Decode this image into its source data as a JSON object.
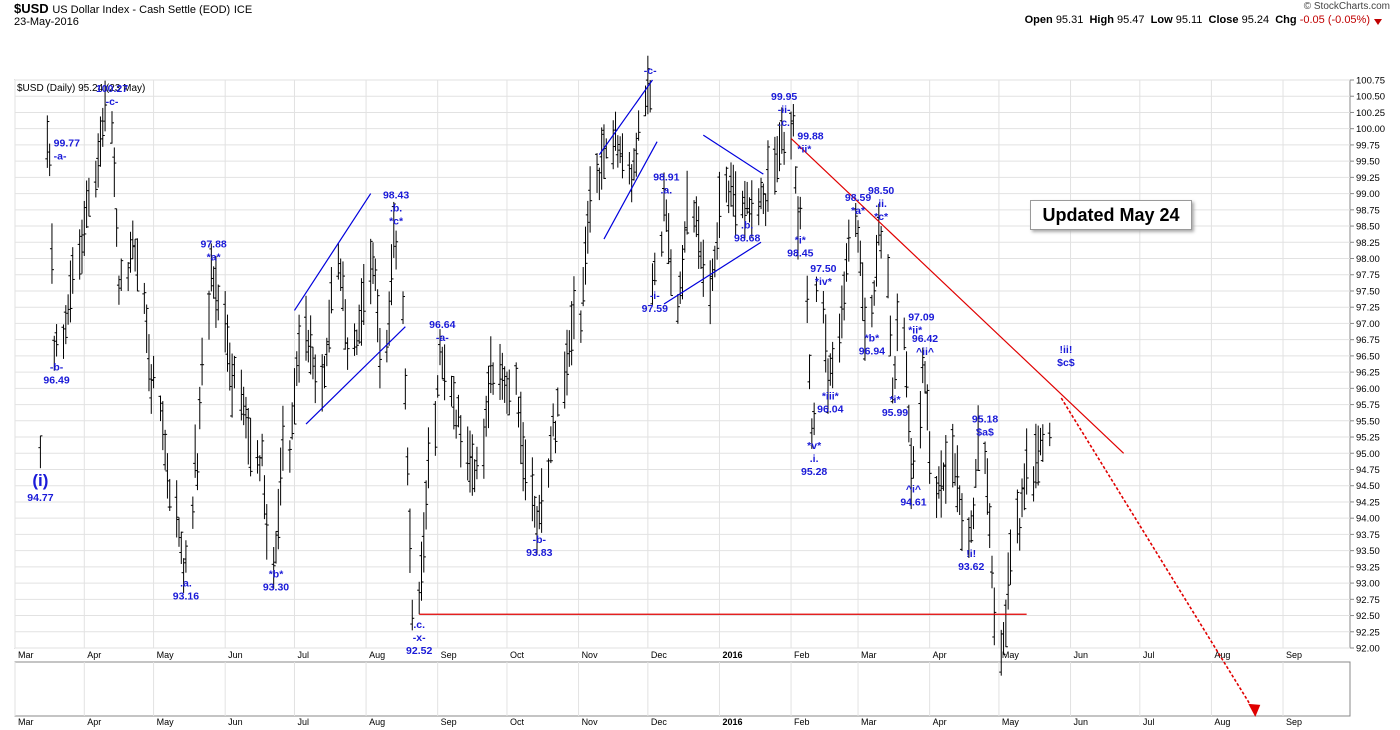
{
  "header": {
    "symbol": "$USD",
    "name": "US Dollar Index - Cash Settle (EOD)",
    "exchange": "ICE",
    "date": "23-May-2016",
    "brand": "© StockCharts.com",
    "ohlc": {
      "open_label": "Open",
      "open": "95.31",
      "high_label": "High",
      "high": "95.47",
      "low_label": "Low",
      "low": "95.11",
      "close_label": "Close",
      "close": "95.24",
      "chg_label": "Chg",
      "chg": "-0.05 (-0.05%)"
    }
  },
  "legend": "$USD (Daily) 95.24 (23 May)",
  "updated_box": "Updated May 24",
  "chart_data": {
    "type": "ohlc",
    "y_axis": {
      "min": 92.0,
      "max": 100.75,
      "step": 0.25,
      "side": "right",
      "ticks": [
        "100.75",
        "100.50",
        "100.25",
        "100.00",
        "99.75",
        "99.50",
        "99.25",
        "99.00",
        "98.75",
        "98.50",
        "98.25",
        "98.00",
        "97.75",
        "97.50",
        "97.25",
        "97.00",
        "96.75",
        "96.50",
        "96.25",
        "96.00",
        "95.75",
        "95.50",
        "95.25",
        "95.00",
        "94.75",
        "94.50",
        "94.25",
        "94.00",
        "93.75",
        "93.50",
        "93.25",
        "93.00",
        "92.75",
        "92.50",
        "92.25",
        "92.00"
      ]
    },
    "x_axis": {
      "months": [
        "Mar",
        "Apr",
        "May",
        "Jun",
        "Jul",
        "Aug",
        "Sep",
        "Oct",
        "Nov",
        "Dec",
        "2016",
        "Feb",
        "Mar",
        "Apr",
        "May",
        "Jun",
        "Jul",
        "Aug",
        "Sep"
      ],
      "range": [
        "2015-03-02",
        "2016-09-30"
      ]
    },
    "pivots": [
      [
        "2015-03-13",
        94.77
      ],
      [
        "2015-03-17",
        99.77
      ],
      [
        "2015-03-20",
        96.49
      ],
      [
        "2015-04-13",
        100.27
      ],
      [
        "2015-04-17",
        97.5
      ],
      [
        "2015-04-23",
        98.3
      ],
      [
        "2015-05-01",
        96.0
      ],
      [
        "2015-05-15",
        93.16
      ],
      [
        "2015-05-20",
        95.0
      ],
      [
        "2015-05-27",
        97.88
      ],
      [
        "2015-06-05",
        96.0
      ],
      [
        "2015-06-17",
        94.8
      ],
      [
        "2015-06-23",
        93.3
      ],
      [
        "2015-06-29",
        95.2
      ],
      [
        "2015-07-07",
        96.9
      ],
      [
        "2015-07-14",
        96.0
      ],
      [
        "2015-07-21",
        98.0
      ],
      [
        "2015-07-27",
        96.5
      ],
      [
        "2015-08-05",
        98.0
      ],
      [
        "2015-08-10",
        96.4
      ],
      [
        "2015-08-14",
        98.43
      ],
      [
        "2015-08-24",
        92.52
      ],
      [
        "2015-09-03",
        96.64
      ],
      [
        "2015-09-10",
        95.4
      ],
      [
        "2015-09-18",
        94.6
      ],
      [
        "2015-09-25",
        96.4
      ],
      [
        "2015-10-05",
        95.9
      ],
      [
        "2015-10-15",
        93.83
      ],
      [
        "2015-10-22",
        95.5
      ],
      [
        "2015-11-02",
        97.2
      ],
      [
        "2015-11-10",
        99.4
      ],
      [
        "2015-11-18",
        99.9
      ],
      [
        "2015-11-25",
        99.2
      ],
      [
        "2015-12-02",
        100.75
      ],
      [
        "2015-12-04",
        97.59
      ],
      [
        "2015-12-09",
        98.91
      ],
      [
        "2015-12-15",
        97.3
      ],
      [
        "2015-12-21",
        98.9
      ],
      [
        "2015-12-29",
        97.5
      ],
      [
        "2016-01-05",
        99.2
      ],
      [
        "2016-01-13",
        98.68
      ],
      [
        "2016-01-21",
        99.0
      ],
      [
        "2016-01-29",
        99.95
      ],
      [
        "2016-02-02",
        99.88
      ],
      [
        "2016-02-05",
        98.45
      ],
      [
        "2016-02-11",
        95.28
      ],
      [
        "2016-02-15",
        97.5
      ],
      [
        "2016-02-18",
        96.04
      ],
      [
        "2016-03-01",
        98.59
      ],
      [
        "2016-03-07",
        96.94
      ],
      [
        "2016-03-11",
        98.5
      ],
      [
        "2016-03-17",
        95.99
      ],
      [
        "2016-03-21",
        97.09
      ],
      [
        "2016-03-25",
        94.61
      ],
      [
        "2016-03-30",
        96.42
      ],
      [
        "2016-04-05",
        94.3
      ],
      [
        "2016-04-12",
        95.0
      ],
      [
        "2016-04-19",
        93.62
      ],
      [
        "2016-04-25",
        95.18
      ],
      [
        "2016-05-03",
        91.9
      ],
      [
        "2016-05-10",
        94.0
      ],
      [
        "2016-05-16",
        94.8
      ],
      [
        "2016-05-23",
        95.24
      ]
    ],
    "annotations": [
      {
        "lines": [
          "(i)",
          "94.77"
        ],
        "date": "2015-03-13",
        "y": 94.77,
        "pos": "below",
        "big": true
      },
      {
        "lines": [
          "99.77",
          "-a-"
        ],
        "date": "2015-03-17",
        "y": 99.77,
        "pos": "right"
      },
      {
        "lines": [
          "-b-",
          "96.49"
        ],
        "date": "2015-03-20",
        "y": 96.49,
        "pos": "below"
      },
      {
        "lines": [
          "100.27",
          "-c-"
        ],
        "date": "2015-04-13",
        "y": 100.27,
        "pos": "above"
      },
      {
        "lines": [
          ".a.",
          "93.16"
        ],
        "date": "2015-05-15",
        "y": 93.16,
        "pos": "below"
      },
      {
        "lines": [
          "97.88",
          "*a*"
        ],
        "date": "2015-05-27",
        "y": 97.88,
        "pos": "above"
      },
      {
        "lines": [
          "*b*",
          "93.30"
        ],
        "date": "2015-06-23",
        "y": 93.3,
        "pos": "below"
      },
      {
        "lines": [
          "98.43",
          ".b.",
          "*c*"
        ],
        "date": "2015-08-14",
        "y": 98.43,
        "pos": "above"
      },
      {
        "lines": [
          ".c.",
          "-x-",
          "92.52"
        ],
        "date": "2015-08-24",
        "y": 92.52,
        "pos": "below"
      },
      {
        "lines": [
          "96.64",
          "-a-"
        ],
        "date": "2015-09-03",
        "y": 96.64,
        "pos": "above"
      },
      {
        "lines": [
          "-b-",
          "93.83"
        ],
        "date": "2015-10-15",
        "y": 93.83,
        "pos": "below"
      },
      {
        "lines": [
          "-c-"
        ],
        "date": "2015-12-02",
        "y": 100.75,
        "pos": "above"
      },
      {
        "lines": [
          "-i-",
          "97.59"
        ],
        "date": "2015-12-04",
        "y": 97.59,
        "pos": "below"
      },
      {
        "lines": [
          "98.91",
          ".a."
        ],
        "date": "2015-12-09",
        "y": 98.91,
        "pos": "above"
      },
      {
        "lines": [
          ".b.",
          "98.68"
        ],
        "date": "2016-01-13",
        "y": 98.68,
        "pos": "below"
      },
      {
        "lines": [
          "99.95",
          "-ii-",
          ".c."
        ],
        "date": "2016-01-29",
        "y": 99.95,
        "pos": "above"
      },
      {
        "lines": [
          "99.88",
          "*ii*"
        ],
        "date": "2016-02-02",
        "y": 99.88,
        "pos": "right"
      },
      {
        "lines": [
          "*i*",
          "98.45"
        ],
        "date": "2016-02-05",
        "y": 98.45,
        "pos": "below"
      },
      {
        "lines": [
          "97.50",
          "*iv*"
        ],
        "date": "2016-02-15",
        "y": 97.5,
        "pos": "above"
      },
      {
        "lines": [
          "*iii*",
          "96.04"
        ],
        "date": "2016-02-18",
        "y": 96.04,
        "pos": "below"
      },
      {
        "lines": [
          "*v*",
          ".i.",
          "95.28"
        ],
        "date": "2016-02-11",
        "y": 95.28,
        "pos": "below"
      },
      {
        "lines": [
          "98.59",
          "*a*"
        ],
        "date": "2016-03-01",
        "y": 98.59,
        "pos": "above"
      },
      {
        "lines": [
          "98.50",
          ".ii.",
          "*c*"
        ],
        "date": "2016-03-11",
        "y": 98.5,
        "pos": "above"
      },
      {
        "lines": [
          "*b*",
          "96.94"
        ],
        "date": "2016-03-07",
        "y": 96.94,
        "pos": "below"
      },
      {
        "lines": [
          "97.09",
          "*ii*"
        ],
        "date": "2016-03-21",
        "y": 97.09,
        "pos": "right"
      },
      {
        "lines": [
          "*i*",
          "95.99"
        ],
        "date": "2016-03-17",
        "y": 95.99,
        "pos": "below"
      },
      {
        "lines": [
          "96.42",
          "^ii^"
        ],
        "date": "2016-03-30",
        "y": 96.42,
        "pos": "above"
      },
      {
        "lines": [
          "^i^",
          "94.61"
        ],
        "date": "2016-03-25",
        "y": 94.61,
        "pos": "below"
      },
      {
        "lines": [
          "!i!",
          "93.62"
        ],
        "date": "2016-04-19",
        "y": 93.62,
        "pos": "below"
      },
      {
        "lines": [
          "95.18",
          "$a$"
        ],
        "date": "2016-04-25",
        "y": 95.18,
        "pos": "above"
      },
      {
        "lines": [
          "!ii!",
          "$c$"
        ],
        "date": "2016-05-30",
        "y": 96.25,
        "pos": "above"
      }
    ],
    "lines": {
      "horizontal_support": {
        "from": [
          "2015-08-24",
          92.52
        ],
        "to": [
          "2016-05-13",
          92.52
        ]
      },
      "down_trendline": {
        "from": [
          "2016-02-01",
          99.85
        ],
        "to": [
          "2016-06-24",
          95.0
        ]
      },
      "projection": {
        "from": [
          "2016-05-28",
          95.85
        ],
        "to": [
          "2016-08-20",
          91.0
        ]
      },
      "channel_jul_aug": [
        {
          "from": [
            "2015-07-01",
            97.2
          ],
          "to": [
            "2015-08-03",
            99.0
          ]
        },
        {
          "from": [
            "2015-07-06",
            95.45
          ],
          "to": [
            "2015-08-18",
            96.95
          ]
        }
      ],
      "channel_nov": [
        {
          "from": [
            "2015-11-10",
            99.6
          ],
          "to": [
            "2015-12-03",
            100.75
          ]
        },
        {
          "from": [
            "2015-11-12",
            98.3
          ],
          "to": [
            "2015-12-05",
            99.8
          ]
        }
      ],
      "triangle_dec_jan": [
        {
          "from": [
            "2015-12-08",
            97.3
          ],
          "to": [
            "2016-01-19",
            98.25
          ]
        },
        {
          "from": [
            "2015-12-25",
            99.9
          ],
          "to": [
            "2016-01-20",
            99.3
          ]
        }
      ]
    }
  }
}
